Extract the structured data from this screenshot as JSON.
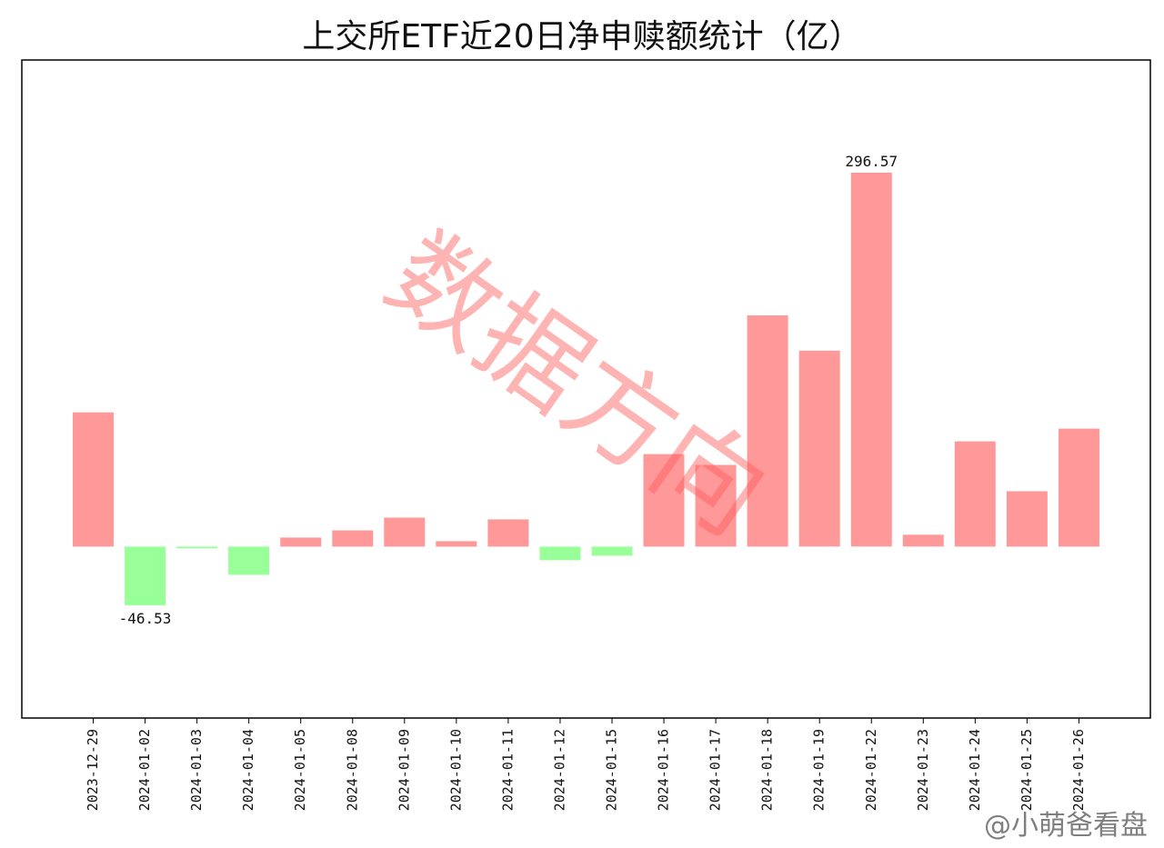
{
  "chart_data": {
    "type": "bar",
    "title": "上交所ETF近20日净申赎额统计（亿）",
    "xlabel": "",
    "ylabel": "",
    "categories": [
      "2023-12-29",
      "2024-01-02",
      "2024-01-03",
      "2024-01-04",
      "2024-01-05",
      "2024-01-08",
      "2024-01-09",
      "2024-01-10",
      "2024-01-11",
      "2024-01-12",
      "2024-01-15",
      "2024-01-16",
      "2024-01-17",
      "2024-01-18",
      "2024-01-19",
      "2024-01-22",
      "2024-01-23",
      "2024-01-24",
      "2024-01-25",
      "2024-01-26"
    ],
    "values": [
      106.5,
      -46.53,
      -1.4,
      -22.4,
      7.2,
      12.9,
      23.0,
      4.3,
      21.6,
      -10.8,
      -7.2,
      73.4,
      64.8,
      183.4,
      155.4,
      296.57,
      9.4,
      83.5,
      43.9,
      93.6
    ],
    "data_labels": [
      {
        "index": 1,
        "text": "-46.53"
      },
      {
        "index": 15,
        "text": "296.57"
      }
    ],
    "ylim": [
      -136,
      386
    ],
    "grid": false,
    "colors": {
      "positive": "#ff9999",
      "negative": "#99ff99",
      "axis": "#000000"
    }
  },
  "watermark": {
    "text": "数据方向"
  },
  "credit": {
    "text": "@小萌爸看盘"
  }
}
